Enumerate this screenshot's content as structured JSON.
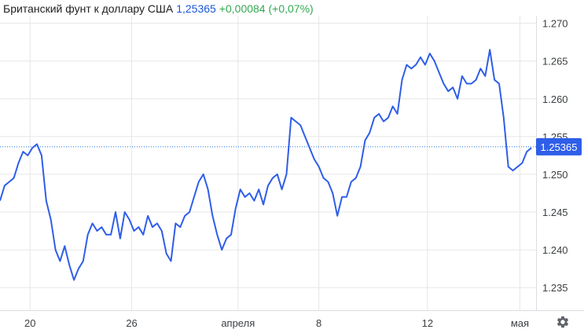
{
  "header": {
    "title": "Британский фунт к доллару США",
    "price": "1,25365",
    "change": "+0,00084 (+0,07%)"
  },
  "colors": {
    "line": "#2f5ee8",
    "price_label_bg": "#2f5ee8",
    "grid": "#e6e6e6",
    "change_positive": "#34a853",
    "reference_line": "#1a73e8"
  },
  "icons": {
    "settings": "gear-icon"
  },
  "chart_data": {
    "type": "line",
    "title": "Британский фунт к доллару США",
    "xlabel": "",
    "ylabel": "",
    "ylim": [
      1.232,
      1.271
    ],
    "xlim": [
      0,
      23.2
    ],
    "grid": true,
    "y_axis_side": "right",
    "y_ticks": [
      1.235,
      1.24,
      1.245,
      1.25,
      1.255,
      1.26,
      1.265,
      1.27
    ],
    "y_tick_labels": [
      "1.235",
      "1.240",
      "1.245",
      "1.250",
      "1.255",
      "1.260",
      "1.265",
      "1.270"
    ],
    "x_ticks": [
      {
        "x": 1.3,
        "label": "20"
      },
      {
        "x": 5.7,
        "label": "26"
      },
      {
        "x": 10.3,
        "label": "апреля"
      },
      {
        "x": 13.8,
        "label": "8"
      },
      {
        "x": 18.5,
        "label": "12"
      },
      {
        "x": 22.5,
        "label": "мая"
      }
    ],
    "current_value": 1.25365,
    "current_label": "1.25365",
    "series": [
      {
        "values": [
          [
            0.0,
            1.2465
          ],
          [
            0.2,
            1.2485
          ],
          [
            0.4,
            1.249
          ],
          [
            0.6,
            1.2495
          ],
          [
            0.8,
            1.2515
          ],
          [
            1.0,
            1.253
          ],
          [
            1.2,
            1.2525
          ],
          [
            1.4,
            1.2535
          ],
          [
            1.6,
            1.254
          ],
          [
            1.8,
            1.2525
          ],
          [
            2.0,
            1.2465
          ],
          [
            2.2,
            1.244
          ],
          [
            2.4,
            1.24
          ],
          [
            2.6,
            1.2385
          ],
          [
            2.8,
            1.2405
          ],
          [
            3.0,
            1.238
          ],
          [
            3.2,
            1.236
          ],
          [
            3.4,
            1.2375
          ],
          [
            3.6,
            1.2385
          ],
          [
            3.8,
            1.242
          ],
          [
            4.0,
            1.2435
          ],
          [
            4.2,
            1.2425
          ],
          [
            4.4,
            1.243
          ],
          [
            4.6,
            1.242
          ],
          [
            4.8,
            1.242
          ],
          [
            5.0,
            1.245
          ],
          [
            5.2,
            1.2415
          ],
          [
            5.4,
            1.245
          ],
          [
            5.6,
            1.244
          ],
          [
            5.8,
            1.2425
          ],
          [
            6.0,
            1.243
          ],
          [
            6.2,
            1.242
          ],
          [
            6.4,
            1.2445
          ],
          [
            6.6,
            1.243
          ],
          [
            6.8,
            1.2435
          ],
          [
            7.0,
            1.2425
          ],
          [
            7.2,
            1.2395
          ],
          [
            7.4,
            1.2385
          ],
          [
            7.6,
            1.2435
          ],
          [
            7.8,
            1.243
          ],
          [
            8.0,
            1.2445
          ],
          [
            8.2,
            1.245
          ],
          [
            8.4,
            1.247
          ],
          [
            8.6,
            1.249
          ],
          [
            8.8,
            1.25
          ],
          [
            9.0,
            1.248
          ],
          [
            9.2,
            1.2445
          ],
          [
            9.4,
            1.242
          ],
          [
            9.6,
            1.24
          ],
          [
            9.8,
            1.2415
          ],
          [
            10.0,
            1.242
          ],
          [
            10.2,
            1.2455
          ],
          [
            10.4,
            1.248
          ],
          [
            10.6,
            1.247
          ],
          [
            10.8,
            1.2475
          ],
          [
            11.0,
            1.2465
          ],
          [
            11.2,
            1.248
          ],
          [
            11.4,
            1.246
          ],
          [
            11.6,
            1.2485
          ],
          [
            11.8,
            1.2495
          ],
          [
            12.0,
            1.25
          ],
          [
            12.2,
            1.248
          ],
          [
            12.4,
            1.25
          ],
          [
            12.6,
            1.2575
          ],
          [
            12.8,
            1.257
          ],
          [
            13.0,
            1.2565
          ],
          [
            13.2,
            1.255
          ],
          [
            13.4,
            1.2535
          ],
          [
            13.6,
            1.252
          ],
          [
            13.8,
            1.251
          ],
          [
            14.0,
            1.2495
          ],
          [
            14.2,
            1.249
          ],
          [
            14.4,
            1.2475
          ],
          [
            14.6,
            1.2445
          ],
          [
            14.8,
            1.247
          ],
          [
            15.0,
            1.247
          ],
          [
            15.2,
            1.249
          ],
          [
            15.4,
            1.2495
          ],
          [
            15.6,
            1.251
          ],
          [
            15.8,
            1.2545
          ],
          [
            16.0,
            1.2555
          ],
          [
            16.2,
            1.2575
          ],
          [
            16.4,
            1.258
          ],
          [
            16.6,
            1.257
          ],
          [
            16.8,
            1.2575
          ],
          [
            17.0,
            1.259
          ],
          [
            17.2,
            1.258
          ],
          [
            17.4,
            1.2625
          ],
          [
            17.6,
            1.2645
          ],
          [
            17.8,
            1.264
          ],
          [
            18.0,
            1.2645
          ],
          [
            18.2,
            1.2655
          ],
          [
            18.4,
            1.2645
          ],
          [
            18.6,
            1.266
          ],
          [
            18.8,
            1.265
          ],
          [
            19.0,
            1.2635
          ],
          [
            19.2,
            1.262
          ],
          [
            19.4,
            1.261
          ],
          [
            19.6,
            1.2615
          ],
          [
            19.8,
            1.26
          ],
          [
            20.0,
            1.263
          ],
          [
            20.2,
            1.262
          ],
          [
            20.4,
            1.262
          ],
          [
            20.6,
            1.2625
          ],
          [
            20.8,
            1.264
          ],
          [
            21.0,
            1.263
          ],
          [
            21.2,
            1.2665
          ],
          [
            21.4,
            1.2625
          ],
          [
            21.6,
            1.262
          ],
          [
            21.8,
            1.2575
          ],
          [
            22.0,
            1.251
          ],
          [
            22.2,
            1.2505
          ],
          [
            22.4,
            1.251
          ],
          [
            22.6,
            1.2515
          ],
          [
            22.8,
            1.253
          ],
          [
            23.0,
            1.2535
          ]
        ]
      }
    ]
  }
}
